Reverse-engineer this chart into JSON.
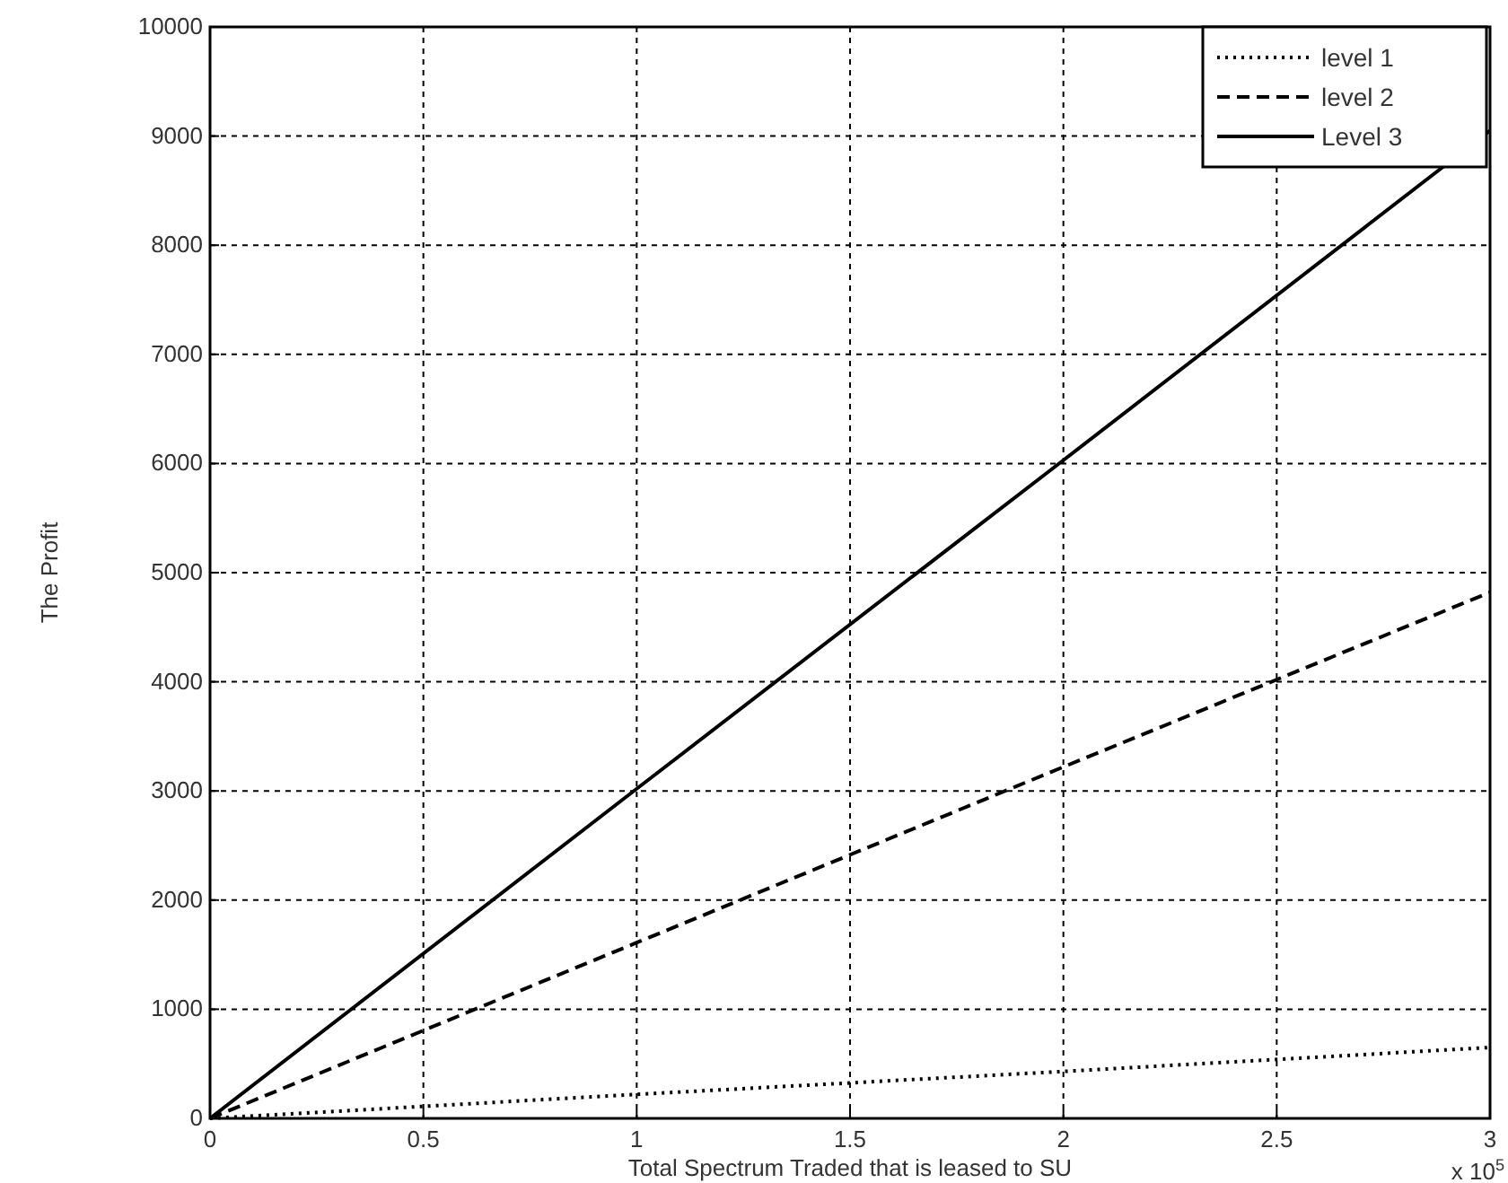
{
  "chart_data": {
    "type": "line",
    "xlabel": "Total Spectrum Traded that is leased to SU",
    "ylabel": "The Profit",
    "x": [
      0,
      1,
      2,
      3
    ],
    "series": [
      {
        "name": "level 1",
        "color": "#000000",
        "line_style": "dotted",
        "values": [
          0,
          220,
          430,
          650
        ]
      },
      {
        "name": "level 2",
        "color": "#000000",
        "line_style": "dashed",
        "values": [
          0,
          1610,
          3220,
          4820
        ]
      },
      {
        "name": "Level 3",
        "color": "#000000",
        "line_style": "solid",
        "values": [
          0,
          3020,
          6030,
          9050
        ]
      }
    ],
    "xlim": [
      0,
      3
    ],
    "xticks": [
      0,
      0.5,
      1,
      1.5,
      2,
      2.5,
      3
    ],
    "ylim": [
      0,
      10000
    ],
    "yticks": [
      0,
      1000,
      2000,
      3000,
      4000,
      5000,
      6000,
      7000,
      8000,
      9000,
      10000
    ],
    "grid": true,
    "legend": "top right",
    "marker": "none",
    "annotations": [
      "x 10$^{5}$"
    ]
  }
}
